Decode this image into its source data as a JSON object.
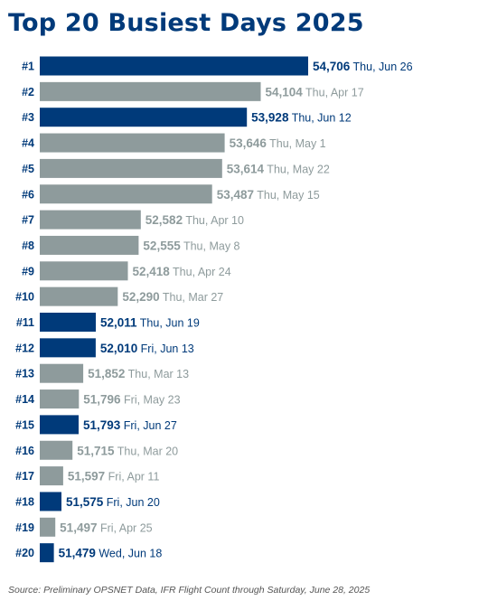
{
  "title": "Top 20 Busiest Days 2025",
  "source": "Source: Preliminary OPSNET Data, IFR Flight Count through Saturday, June 28, 2025",
  "colors": {
    "highlight": "#003a7a",
    "default": "#8e9b9c",
    "title": "#003a7a"
  },
  "chart_data": {
    "type": "bar",
    "orientation": "horizontal",
    "title": "Top 20 Busiest Days 2025",
    "categories": [
      "#1",
      "#2",
      "#3",
      "#4",
      "#5",
      "#6",
      "#7",
      "#8",
      "#9",
      "#10",
      "#11",
      "#12",
      "#13",
      "#14",
      "#15",
      "#16",
      "#17",
      "#18",
      "#19",
      "#20"
    ],
    "values": [
      54706,
      54104,
      53928,
      53646,
      53614,
      53487,
      52582,
      52555,
      52418,
      52290,
      52011,
      52010,
      51852,
      51796,
      51793,
      51715,
      51597,
      51575,
      51497,
      51479
    ],
    "value_labels": [
      "54,706",
      "54,104",
      "53,928",
      "53,646",
      "53,614",
      "53,487",
      "52,582",
      "52,555",
      "52,418",
      "52,290",
      "52,011",
      "52,010",
      "51,852",
      "51,796",
      "51,793",
      "51,715",
      "51,597",
      "51,575",
      "51,497",
      "51,479"
    ],
    "dates": [
      "Thu, Jun 26",
      "Thu, Apr 17",
      "Thu, Jun 12",
      "Thu, May 1",
      "Thu, May 22",
      "Thu, May 15",
      "Thu, Apr 10",
      "Thu, May 8",
      "Thu, Apr 24",
      "Thu, Mar 27",
      "Thu, Jun 19",
      "Fri, Jun 13",
      "Thu, Mar 13",
      "Fri, May 23",
      "Fri, Jun 27",
      "Thu, Mar 20",
      "Fri, Apr 11",
      "Fri, Jun 20",
      "Fri, Apr 25",
      "Wed, Jun 18"
    ],
    "highlighted": [
      true,
      false,
      true,
      false,
      false,
      false,
      false,
      false,
      false,
      false,
      true,
      true,
      false,
      false,
      true,
      false,
      false,
      true,
      false,
      true
    ],
    "xlim": [
      51300,
      54706
    ],
    "grid": false,
    "legend": "none"
  }
}
